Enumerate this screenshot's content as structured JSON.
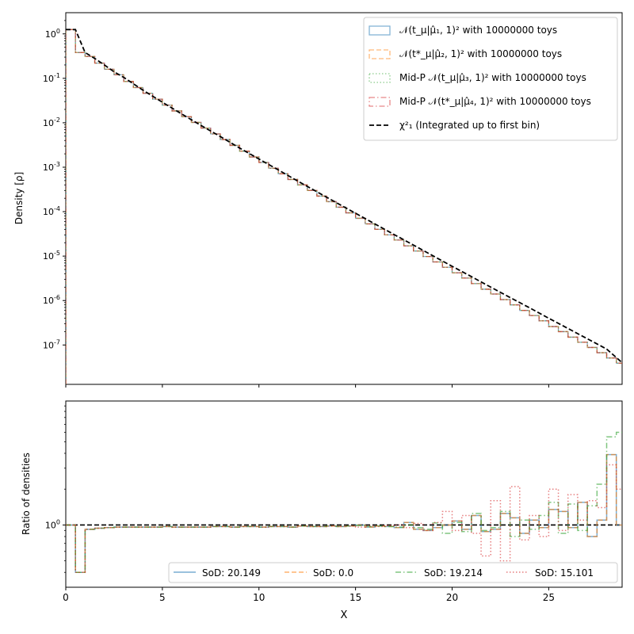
{
  "chart_data": [
    {
      "type": "line",
      "subtype": "step-histogram",
      "title": "",
      "xlabel": "",
      "ylabel": "Density [ρ]",
      "xscale": "linear",
      "yscale": "log",
      "xlim": [
        0,
        28.8
      ],
      "ylim": [
        1.3e-08,
        3.0
      ],
      "grid": false,
      "legend_position": "top-right",
      "x_ticks": [
        0,
        5,
        10,
        15,
        20,
        25
      ],
      "y_ticks": [
        {
          "value": 1e-07,
          "label": "10^-7"
        },
        {
          "value": 1e-06,
          "label": "10^-6"
        },
        {
          "value": 1e-05,
          "label": "10^-5"
        },
        {
          "value": 0.0001,
          "label": "10^-4"
        },
        {
          "value": 0.001,
          "label": "10^-3"
        },
        {
          "value": 0.01,
          "label": "10^-2"
        },
        {
          "value": 0.1,
          "label": "10^-1"
        },
        {
          "value": 1,
          "label": "10^0"
        }
      ],
      "bin_width": 0.5,
      "bin_edges_start": 0,
      "series": [
        {
          "name": "𝒩(t_μ|μ̂₁, 1)² with 10000000 toys",
          "color": "#1f77b4",
          "style": "solid",
          "values": [
            1.25,
            0.38,
            0.31,
            0.22,
            0.16,
            0.12,
            0.085,
            0.062,
            0.046,
            0.034,
            0.025,
            0.0185,
            0.0137,
            0.0102,
            0.0076,
            0.0056,
            0.0042,
            0.0031,
            0.0023,
            0.0017,
            0.00128,
            0.00095,
            0.00071,
            0.00053,
            0.0004,
            0.0003,
            0.000224,
            0.000168,
            0.000126,
            9.4e-05,
            7.1e-05,
            5.3e-05,
            4e-05,
            3e-05,
            2.3e-05,
            1.7e-05,
            1.3e-05,
            9.8e-06,
            7.4e-06,
            5.6e-06,
            4.2e-06,
            3.2e-06,
            2.4e-06,
            1.8e-06,
            1.4e-06,
            1.05e-06,
            8e-07,
            6e-07,
            4.6e-07,
            3.5e-07,
            2.6e-07,
            2e-07,
            1.5e-07,
            1.15e-07,
            8.8e-08,
            6.7e-08,
            5.1e-08,
            3.9e-08
          ]
        },
        {
          "name": "𝒩(t*_μ|μ̂₂, 1)² with 10000000 toys",
          "color": "#ff7f0e",
          "style": "dashed",
          "values": [
            1.25,
            0.38,
            0.31,
            0.22,
            0.16,
            0.12,
            0.085,
            0.062,
            0.046,
            0.034,
            0.025,
            0.0185,
            0.0137,
            0.0102,
            0.0076,
            0.0056,
            0.0042,
            0.0031,
            0.0023,
            0.0017,
            0.00128,
            0.00095,
            0.00071,
            0.00053,
            0.0004,
            0.0003,
            0.000224,
            0.000168,
            0.000126,
            9.4e-05,
            7.1e-05,
            5.3e-05,
            4e-05,
            3e-05,
            2.3e-05,
            1.7e-05,
            1.3e-05,
            9.8e-06,
            7.4e-06,
            5.6e-06,
            4.2e-06,
            3.2e-06,
            2.4e-06,
            1.8e-06,
            1.4e-06,
            1.05e-06,
            8e-07,
            6e-07,
            4.6e-07,
            3.5e-07,
            2.6e-07,
            2e-07,
            1.5e-07,
            1.15e-07,
            8.8e-08,
            6.7e-08,
            5.1e-08,
            3.9e-08
          ]
        },
        {
          "name": "Mid-P 𝒩(t_μ|μ̂₃, 1)² with 10000000 toys",
          "color": "#2ca02c",
          "style": "dotted",
          "values": [
            1.25,
            0.38,
            0.31,
            0.22,
            0.16,
            0.12,
            0.085,
            0.062,
            0.046,
            0.034,
            0.025,
            0.0185,
            0.0137,
            0.0102,
            0.0076,
            0.0056,
            0.0042,
            0.0031,
            0.0023,
            0.0017,
            0.00128,
            0.00095,
            0.00071,
            0.00053,
            0.0004,
            0.0003,
            0.000224,
            0.000168,
            0.000126,
            9.4e-05,
            7.1e-05,
            5.3e-05,
            4e-05,
            3e-05,
            2.3e-05,
            1.7e-05,
            1.3e-05,
            9.8e-06,
            7.4e-06,
            5.6e-06,
            4.2e-06,
            3.2e-06,
            2.4e-06,
            1.8e-06,
            1.4e-06,
            1.05e-06,
            8e-07,
            6e-07,
            4.6e-07,
            3.5e-07,
            2.6e-07,
            2e-07,
            1.5e-07,
            1.15e-07,
            8.8e-08,
            6.7e-08,
            5.1e-08,
            3.9e-08
          ]
        },
        {
          "name": "Mid-P 𝒩(t*_μ|μ̂₄, 1)² with 10000000 toys",
          "color": "#d62728",
          "style": "dashdot",
          "values": [
            1.25,
            0.38,
            0.31,
            0.22,
            0.16,
            0.12,
            0.085,
            0.062,
            0.046,
            0.034,
            0.025,
            0.0185,
            0.0137,
            0.0102,
            0.0076,
            0.0056,
            0.0042,
            0.0031,
            0.0023,
            0.0017,
            0.00128,
            0.00095,
            0.00071,
            0.00053,
            0.0004,
            0.0003,
            0.000224,
            0.000168,
            0.000126,
            9.4e-05,
            7.1e-05,
            5.3e-05,
            4e-05,
            3e-05,
            2.3e-05,
            1.7e-05,
            1.3e-05,
            9.8e-06,
            7.4e-06,
            5.6e-06,
            4.2e-06,
            3.2e-06,
            2.4e-06,
            1.8e-06,
            1.4e-06,
            1.05e-06,
            8e-07,
            6e-07,
            4.6e-07,
            3.5e-07,
            2.6e-07,
            2e-07,
            1.5e-07,
            1.15e-07,
            8.8e-08,
            6.7e-08,
            5.1e-08,
            3.9e-08
          ]
        },
        {
          "name": "χ²₁ (Integrated up to first bin)",
          "color": "#000000",
          "style": "dashed-thick",
          "x": [
            0.0,
            0.5,
            1.0,
            1.5,
            2.0,
            2.5,
            3,
            4,
            5,
            6,
            7,
            8,
            9,
            10,
            11,
            12,
            13,
            14,
            15,
            16,
            17,
            18,
            19,
            20,
            21,
            22,
            23,
            24,
            25,
            26,
            27,
            28,
            28.8
          ],
          "y": [
            1.25,
            1.25,
            0.38,
            0.28,
            0.2,
            0.14,
            0.105,
            0.054,
            0.029,
            0.0158,
            0.0087,
            0.0049,
            0.0027,
            0.00153,
            0.00087,
            0.00049,
            0.00028,
            0.00016,
            9.2e-05,
            5.3e-05,
            3.05e-05,
            1.77e-05,
            1.02e-05,
            5.9e-06,
            3.45e-06,
            2e-06,
            1.17e-06,
            6.9e-07,
            4e-07,
            2.35e-07,
            1.38e-07,
            8.1e-08,
            4e-08
          ]
        }
      ],
      "legend": [
        "𝒩(t_μ|μ̂₁, 1)² with 10000000 toys",
        "𝒩(t*_μ|μ̂₂, 1)² with 10000000 toys",
        "Mid-P 𝒩(t_μ|μ̂₃, 1)² with 10000000 toys",
        "Mid-P 𝒩(t*_μ|μ̂₄, 1)² with 10000000 toys",
        "χ²₁ (Integrated up to first bin)"
      ]
    },
    {
      "type": "line",
      "subtype": "step-ratio",
      "title": "",
      "xlabel": "X",
      "ylabel": "Ratio of densities",
      "xscale": "linear",
      "yscale": "log",
      "xlim": [
        0,
        28.8
      ],
      "ylim": [
        0.3,
        11
      ],
      "grid": false,
      "legend_position": "lower-right",
      "x_ticks": [
        0,
        5,
        10,
        15,
        20,
        25
      ],
      "y_ticks": [
        {
          "value": 1,
          "label": "10^0"
        }
      ],
      "reference_line": 1,
      "bin_width": 0.5,
      "bin_edges_start": 0,
      "series": [
        {
          "name": "SoD: 20.149",
          "color": "#1f77b4",
          "style": "solid",
          "values": [
            1.0,
            0.4,
            0.92,
            0.94,
            0.95,
            0.96,
            0.96,
            0.96,
            0.96,
            0.96,
            0.97,
            0.96,
            0.96,
            0.96,
            0.96,
            0.97,
            0.97,
            0.96,
            0.97,
            0.97,
            0.96,
            0.97,
            0.97,
            0.96,
            0.98,
            0.97,
            0.97,
            0.98,
            0.97,
            0.98,
            1.0,
            0.96,
            0.98,
            0.97,
            0.95,
            1.05,
            0.92,
            0.9,
            0.95,
            1.0,
            1.08,
            0.92,
            1.2,
            0.88,
            0.92,
            1.25,
            1.15,
            0.85,
            1.1,
            0.95,
            1.35,
            1.3,
            0.95,
            1.55,
            0.8,
            1.1,
            3.9,
            1.0
          ]
        },
        {
          "name": "SoD: 0.0",
          "color": "#ff7f0e",
          "style": "dashed",
          "values": [
            1.0,
            0.4,
            0.92,
            0.94,
            0.95,
            0.96,
            0.96,
            0.96,
            0.96,
            0.96,
            0.97,
            0.96,
            0.96,
            0.96,
            0.96,
            0.97,
            0.97,
            0.96,
            0.97,
            0.97,
            0.96,
            0.97,
            0.97,
            0.96,
            0.98,
            0.97,
            0.97,
            0.98,
            0.97,
            0.98,
            1.0,
            0.96,
            0.98,
            0.97,
            0.95,
            1.05,
            0.92,
            0.9,
            0.95,
            1.0,
            1.08,
            0.92,
            1.2,
            0.88,
            0.92,
            1.25,
            1.15,
            0.85,
            1.1,
            0.95,
            1.35,
            1.3,
            0.95,
            1.55,
            0.8,
            1.1,
            3.9,
            1.0
          ]
        },
        {
          "name": "SoD: 19.214",
          "color": "#2ca02c",
          "style": "dashdot",
          "values": [
            1.0,
            0.4,
            0.92,
            0.94,
            0.95,
            0.96,
            0.96,
            0.96,
            0.96,
            0.96,
            0.97,
            0.96,
            0.96,
            0.96,
            0.96,
            0.97,
            0.97,
            0.96,
            0.97,
            0.97,
            0.96,
            0.97,
            0.97,
            0.96,
            0.98,
            0.97,
            0.97,
            0.98,
            0.97,
            0.98,
            0.99,
            0.97,
            0.98,
            0.97,
            0.96,
            1.0,
            0.95,
            0.92,
            1.04,
            0.85,
            1.05,
            0.88,
            1.25,
            0.9,
            0.95,
            1.3,
            0.8,
            1.1,
            0.92,
            1.2,
            1.55,
            0.85,
            1.5,
            0.9,
            1.45,
            2.2,
            5.5,
            6.0
          ]
        },
        {
          "name": "SoD: 15.101",
          "color": "#d62728",
          "style": "dotted",
          "values": [
            1.0,
            0.4,
            0.92,
            0.94,
            0.95,
            0.96,
            0.96,
            0.96,
            0.96,
            0.96,
            0.97,
            0.96,
            0.96,
            0.96,
            0.96,
            0.97,
            0.97,
            0.96,
            0.97,
            0.97,
            0.96,
            0.97,
            0.97,
            0.96,
            0.98,
            0.97,
            0.97,
            0.98,
            0.97,
            0.98,
            0.96,
            0.98,
            0.97,
            0.99,
            1.0,
            0.95,
            1.03,
            0.9,
            1.05,
            1.3,
            0.9,
            1.2,
            0.85,
            0.55,
            1.6,
            0.5,
            2.1,
            0.75,
            1.2,
            0.8,
            2.0,
            0.9,
            1.8,
            1.1,
            1.6,
            1.4,
            3.2,
            2.0
          ]
        }
      ],
      "legend": [
        "SoD: 20.149",
        "SoD: 0.0",
        "SoD: 19.214",
        "SoD: 15.101"
      ]
    }
  ]
}
